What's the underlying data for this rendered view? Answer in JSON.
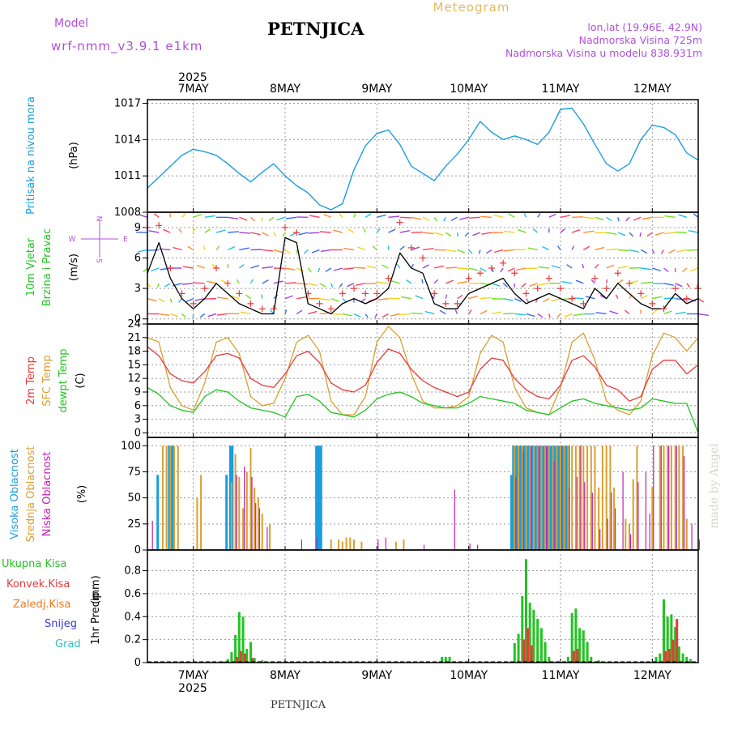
{
  "header": {
    "model_label": "Model",
    "model_name": "wrf-nmm_v3.9.1 e1km",
    "station": "PETNJICA",
    "product": "Meteogram",
    "lonlat": "lon,lat (19.96E, 42.9N)",
    "elevation": "Nadmorska Visina 725m",
    "model_elevation": "Nadmorska Visina u modelu 838.931m",
    "footer_station": "PETNJICA",
    "credit": "made by Angel"
  },
  "colors": {
    "pressure": "#1a9ee0",
    "wind_speed": "#000000",
    "gust": "#e83a3a",
    "temp2m": "#e83a3a",
    "sfc_temp": "#d8a030",
    "dewpoint": "#22c322",
    "cloud_high": "#1a9ee0",
    "cloud_mid": "#d8a030",
    "cloud_low": "#c020b0",
    "precip_total": "#22c322",
    "precip_conv": "#e83a3a",
    "precip_frozen": "#f07a20",
    "snow": "#3a3ad8",
    "hail": "#30c0c0",
    "label_purple": "#b050d8",
    "title_orange": "#e8b860"
  },
  "chart_data": [
    {
      "id": "pressure",
      "type": "line",
      "title": "",
      "ylabel": "Pritisak na nivou mora",
      "yunit": "(hPa)",
      "ylim": [
        1008,
        1017.3
      ],
      "yticks": [
        1008,
        1011,
        1014,
        1017
      ],
      "x_hours": [
        0,
        3,
        6,
        9,
        12,
        15,
        18,
        21,
        24,
        27,
        30,
        33,
        36,
        39,
        42,
        45,
        48,
        51,
        54,
        57,
        60,
        63,
        66,
        69,
        72,
        75,
        78,
        81,
        84,
        87,
        90,
        93,
        96,
        99,
        102,
        105,
        108,
        111,
        114,
        117,
        120,
        123,
        126,
        129,
        132,
        135,
        138,
        141,
        144
      ],
      "values": [
        1010.0,
        1010.9,
        1011.8,
        1012.7,
        1013.2,
        1013.0,
        1012.7,
        1012.0,
        1011.2,
        1010.5,
        1011.3,
        1012.0,
        1011.0,
        1010.2,
        1009.6,
        1008.6,
        1008.2,
        1008.7,
        1011.5,
        1013.5,
        1014.5,
        1014.8,
        1013.6,
        1011.8,
        1011.2,
        1010.6,
        1011.8,
        1012.8,
        1014.0,
        1015.5,
        1014.6,
        1014.0,
        1014.3,
        1014.0,
        1013.6,
        1014.6,
        1016.5,
        1016.6,
        1015.3,
        1013.6,
        1012.0,
        1011.4,
        1012.0,
        1014.0,
        1015.2,
        1015.0,
        1014.4,
        1012.9,
        1012.3
      ]
    },
    {
      "id": "wind",
      "type": "line",
      "title": "",
      "ylabel": "10m Vjetar",
      "ylabel2": "Brzina i Pravac",
      "yunit": "(m/s)",
      "compass": [
        "N",
        "E",
        "S",
        "W"
      ],
      "ylim": [
        -0.5,
        10.5
      ],
      "yticks": [
        0,
        3,
        6,
        9
      ],
      "x_hours": [
        0,
        3,
        6,
        9,
        12,
        15,
        18,
        21,
        24,
        27,
        30,
        33,
        36,
        39,
        42,
        45,
        48,
        51,
        54,
        57,
        60,
        63,
        66,
        69,
        72,
        75,
        78,
        81,
        84,
        87,
        90,
        93,
        96,
        99,
        102,
        105,
        108,
        111,
        114,
        117,
        120,
        123,
        126,
        129,
        132,
        135,
        138,
        141,
        144
      ],
      "speed": [
        4.5,
        7.5,
        4.0,
        2.0,
        1.0,
        2.0,
        3.5,
        2.5,
        1.5,
        1.0,
        0.5,
        0.5,
        8.0,
        7.5,
        1.5,
        1.0,
        0.5,
        1.5,
        2.0,
        1.5,
        2.0,
        3.0,
        6.5,
        5.0,
        4.5,
        1.5,
        1.0,
        1.0,
        2.5,
        3.0,
        3.5,
        4.0,
        2.5,
        1.5,
        2.0,
        2.5,
        2.0,
        1.5,
        1.0,
        3.0,
        2.0,
        3.5,
        2.5,
        1.5,
        1.0,
        1.0,
        2.5,
        1.5,
        2.0
      ],
      "gust": [
        9.0,
        9.2,
        5.0,
        2.5,
        1.5,
        3.0,
        5.0,
        3.5,
        2.5,
        1.5,
        1.0,
        1.0,
        9.0,
        8.5,
        2.5,
        1.5,
        1.0,
        2.5,
        3.0,
        2.5,
        2.5,
        4.0,
        9.5,
        7.0,
        6.0,
        2.5,
        1.5,
        1.5,
        4.0,
        4.5,
        5.0,
        5.5,
        4.5,
        2.5,
        3.0,
        4.0,
        3.0,
        2.0,
        1.5,
        4.0,
        3.0,
        4.5,
        3.5,
        2.5,
        1.5,
        1.0,
        3.0,
        2.0,
        3.0
      ]
    },
    {
      "id": "temperature",
      "type": "line",
      "title": "",
      "ylabel": "2m Temp",
      "ylabel2": "SFC Temp",
      "ylabel3": "dewpt Temp",
      "yunit": "(C)",
      "ylim": [
        -1,
        24
      ],
      "yticks": [
        0,
        3,
        6,
        9,
        12,
        15,
        18,
        21,
        24
      ],
      "x_hours": [
        0,
        3,
        6,
        9,
        12,
        15,
        18,
        21,
        24,
        27,
        30,
        33,
        36,
        39,
        42,
        45,
        48,
        51,
        54,
        57,
        60,
        63,
        66,
        69,
        72,
        75,
        78,
        81,
        84,
        87,
        90,
        93,
        96,
        99,
        102,
        105,
        108,
        111,
        114,
        117,
        120,
        123,
        126,
        129,
        132,
        135,
        138,
        141,
        144
      ],
      "series": [
        {
          "name": "2m Temp",
          "values": [
            19.0,
            17.0,
            13.0,
            11.5,
            11.0,
            13.5,
            17.0,
            17.5,
            16.5,
            12.0,
            10.5,
            10.0,
            13.0,
            17.0,
            18.0,
            15.5,
            11.0,
            9.5,
            9.0,
            10.5,
            15.5,
            18.5,
            17.5,
            14.0,
            11.5,
            10.0,
            9.0,
            8.0,
            9.0,
            14.0,
            16.5,
            16.0,
            12.0,
            9.5,
            8.0,
            7.5,
            10.5,
            16.0,
            17.0,
            14.5,
            10.5,
            9.5,
            7.0,
            8.0,
            14.0,
            16.0,
            16.0,
            13.0,
            15.0
          ]
        },
        {
          "name": "SFC Temp",
          "values": [
            21.0,
            20.0,
            10.0,
            6.0,
            5.0,
            11.0,
            20.0,
            21.0,
            17.5,
            8.0,
            6.0,
            6.5,
            12.0,
            20.0,
            21.5,
            18.0,
            7.0,
            4.0,
            4.0,
            8.0,
            20.0,
            23.5,
            21.0,
            13.0,
            7.0,
            5.5,
            5.5,
            6.0,
            8.0,
            17.5,
            21.5,
            20.0,
            10.0,
            5.5,
            4.5,
            4.0,
            10.0,
            20.0,
            22.0,
            16.0,
            7.0,
            5.0,
            4.0,
            7.0,
            17.0,
            22.0,
            21.0,
            18.0,
            21.0
          ]
        },
        {
          "name": "dewpt Temp",
          "values": [
            10.0,
            8.5,
            6.0,
            5.0,
            4.5,
            8.0,
            9.5,
            9.0,
            7.0,
            5.5,
            5.0,
            4.5,
            3.5,
            8.0,
            8.5,
            7.0,
            4.5,
            4.0,
            3.5,
            5.0,
            7.5,
            8.5,
            9.0,
            8.0,
            6.5,
            6.0,
            5.5,
            5.5,
            6.5,
            8.0,
            7.5,
            7.0,
            6.5,
            5.0,
            4.5,
            4.0,
            5.5,
            7.0,
            7.5,
            6.5,
            6.0,
            5.5,
            5.0,
            5.5,
            7.5,
            7.0,
            6.5,
            6.5,
            0.0
          ]
        }
      ]
    },
    {
      "id": "clouds",
      "type": "bar",
      "title": "",
      "ylabel": "Visoka Oblacnost",
      "ylabel2": "Srednja Oblacnost",
      "ylabel3": "Niska Oblacnost",
      "yunit": "(%)",
      "ylim": [
        0,
        108
      ],
      "yticks": [
        0,
        25,
        50,
        75,
        100
      ],
      "series": [
        {
          "name": "Visoka Oblacnost",
          "x_hours": [
            3,
            6,
            6.6,
            7.2,
            21,
            22,
            22.5,
            44.5,
            45,
            45.5,
            45.7,
            95.5,
            96,
            96.5,
            97,
            97.5,
            98,
            98.5,
            99,
            99.5,
            100,
            100.5,
            101,
            101.5,
            102,
            102.5,
            103,
            103.5,
            104,
            104.5,
            105,
            105.5,
            106,
            106.5,
            107,
            107.5,
            108,
            108.5,
            109,
            109.5,
            110,
            110.5
          ],
          "values": [
            72,
            100,
            100,
            100,
            72,
            100,
            100,
            100,
            100,
            100,
            100,
            72,
            100,
            100,
            100,
            100,
            100,
            100,
            100,
            100,
            100,
            100,
            100,
            100,
            100,
            100,
            100,
            100,
            100,
            100,
            100,
            100,
            100,
            100,
            100,
            100,
            100,
            100,
            100,
            100,
            100,
            100
          ]
        },
        {
          "name": "Srednja Oblacnost",
          "x_hours": [
            4,
            5,
            6,
            7,
            8,
            13,
            14,
            22,
            23,
            24,
            25,
            26,
            27,
            28,
            29,
            30,
            32,
            48,
            50,
            51,
            52,
            53,
            54,
            56,
            65,
            67,
            96,
            97,
            98,
            99,
            100,
            101,
            102,
            103,
            104,
            105,
            106,
            107,
            108,
            109,
            110,
            111,
            112,
            113,
            114,
            115,
            116,
            117,
            118,
            119,
            120,
            121,
            122,
            125,
            126,
            127,
            128,
            132,
            134,
            135,
            136,
            137,
            138,
            139,
            140,
            141
          ],
          "values": [
            100,
            100,
            100,
            100,
            100,
            50,
            72,
            65,
            92,
            70,
            40,
            75,
            98,
            60,
            50,
            35,
            25,
            10,
            10,
            8,
            12,
            12,
            10,
            8,
            8,
            10,
            100,
            100,
            100,
            100,
            100,
            100,
            100,
            100,
            100,
            100,
            100,
            100,
            100,
            100,
            100,
            100,
            100,
            100,
            100,
            100,
            100,
            100,
            60,
            100,
            100,
            100,
            60,
            30,
            25,
            68,
            100,
            60,
            100,
            100,
            100,
            100,
            100,
            100,
            100,
            30
          ]
        },
        {
          "name": "Niska Oblacnost",
          "x_hours": [
            1,
            23,
            25,
            27,
            28,
            29,
            31,
            40,
            44,
            60,
            62,
            72,
            80,
            84,
            86,
            96,
            98,
            100,
            102,
            104,
            106,
            108,
            110,
            112,
            113,
            114,
            116,
            118,
            120,
            121,
            122,
            124,
            126,
            128,
            130,
            131,
            132,
            134,
            136,
            138,
            140,
            142,
            144
          ],
          "values": [
            28,
            72,
            80,
            70,
            45,
            40,
            22,
            10,
            12,
            10,
            12,
            5,
            58,
            6,
            5,
            70,
            95,
            100,
            100,
            100,
            85,
            100,
            60,
            70,
            100,
            65,
            55,
            20,
            30,
            55,
            40,
            75,
            15,
            65,
            75,
            35,
            100,
            100,
            100,
            100,
            90,
            25,
            10
          ]
        }
      ]
    },
    {
      "id": "precip",
      "type": "bar",
      "title": "",
      "ylabel": "1hr Precip",
      "yunit": "(mm)",
      "legend": [
        "Ukupna Kisa",
        "Konvek.Kisa",
        "Zaledj.Kisa",
        "Snijeg",
        "Grad"
      ],
      "ylim": [
        0,
        0.98
      ],
      "yticks": [
        0,
        0.2,
        0.4,
        0.6,
        0.8
      ],
      "series": [
        {
          "name": "Ukupna Kisa",
          "x_hours": [
            20,
            21,
            22,
            23,
            24,
            25,
            26,
            27,
            28,
            29,
            30,
            31,
            77,
            78,
            79,
            96,
            97,
            98,
            99,
            100,
            101,
            102,
            103,
            104,
            105,
            106,
            110,
            111,
            112,
            113,
            114,
            115,
            116,
            117,
            118,
            133,
            134,
            135,
            136,
            137,
            138,
            139,
            140,
            141,
            142,
            143
          ],
          "values": [
            0.01,
            0.03,
            0.09,
            0.24,
            0.44,
            0.4,
            0.12,
            0.18,
            0.04,
            0.01,
            0.02,
            0.01,
            0.05,
            0.05,
            0.05,
            0.17,
            0.25,
            0.58,
            0.9,
            0.52,
            0.46,
            0.38,
            0.3,
            0.18,
            0.05,
            0.01,
            0.05,
            0.43,
            0.47,
            0.3,
            0.28,
            0.18,
            0.05,
            0.01,
            0.02,
            0.05,
            0.08,
            0.55,
            0.4,
            0.42,
            0.31,
            0.14,
            0.08,
            0.05,
            0.03,
            0.01
          ]
        },
        {
          "name": "Konvek.Kisa",
          "x_hours": [
            23,
            24,
            25,
            27,
            98,
            99,
            100,
            111,
            112,
            135,
            136,
            137,
            138
          ],
          "values": [
            0.05,
            0.1,
            0.08,
            0.04,
            0.2,
            0.3,
            0.15,
            0.1,
            0.12,
            0.1,
            0.12,
            0.2,
            0.38
          ]
        }
      ]
    }
  ],
  "x_axis": {
    "year": "2025",
    "day_labels": [
      "7MAY",
      "8MAY",
      "9MAY",
      "10MAY",
      "11MAY",
      "12MAY"
    ],
    "day_hours": [
      12,
      36,
      60,
      84,
      108,
      132
    ],
    "range_hours": [
      0,
      144
    ]
  }
}
